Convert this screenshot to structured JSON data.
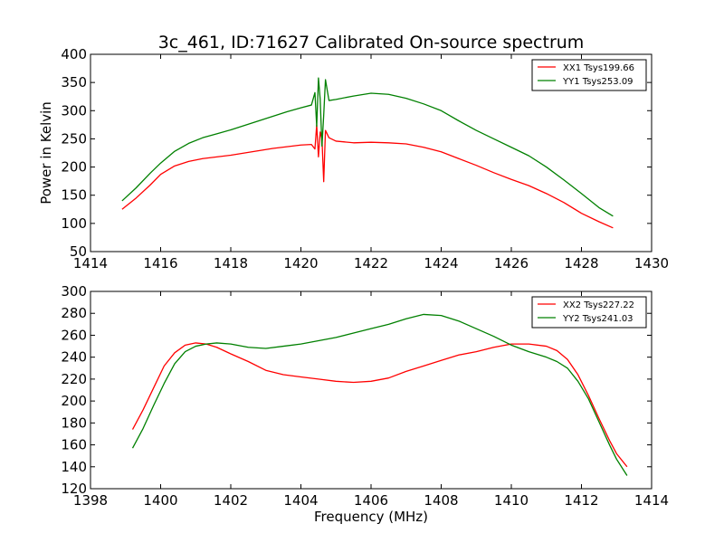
{
  "figure": {
    "title": "3c_461, ID:71627 Calibrated On-source spectrum"
  },
  "chart_data": [
    {
      "type": "line",
      "title": "3c_461, ID:71627 Calibrated On-source spectrum",
      "xlabel": "",
      "ylabel": "Power in Kelvin",
      "xlim": [
        1414,
        1430
      ],
      "ylim": [
        50,
        400
      ],
      "xticks": [
        "1414",
        "1416",
        "1418",
        "1420",
        "1422",
        "1424",
        "1426",
        "1428",
        "1430"
      ],
      "yticks": [
        "50",
        "100",
        "150",
        "200",
        "250",
        "300",
        "350",
        "400"
      ],
      "legend_position": "top-right",
      "grid": false,
      "series": [
        {
          "name": "XX1 Tsys199.66",
          "color": "#ff0000",
          "x": [
            1414.9,
            1415.3,
            1415.7,
            1416.0,
            1416.4,
            1416.8,
            1417.2,
            1417.6,
            1418.0,
            1418.4,
            1418.8,
            1419.2,
            1419.6,
            1420.0,
            1420.3,
            1420.4,
            1420.45,
            1420.5,
            1420.55,
            1420.6,
            1420.65,
            1420.7,
            1420.8,
            1421.0,
            1421.5,
            1422.0,
            1422.5,
            1423.0,
            1423.5,
            1424.0,
            1424.5,
            1425.0,
            1425.5,
            1426.0,
            1426.5,
            1427.0,
            1427.5,
            1428.0,
            1428.5,
            1428.9
          ],
          "y": [
            125,
            145,
            168,
            187,
            202,
            210,
            215,
            218,
            221,
            225,
            229,
            233,
            236,
            239,
            240,
            232,
            275,
            218,
            262,
            250,
            174,
            265,
            252,
            246,
            243,
            244,
            243,
            241,
            235,
            227,
            215,
            203,
            190,
            178,
            167,
            153,
            137,
            118,
            103,
            92
          ]
        },
        {
          "name": "YY1 Tsys253.09",
          "color": "#008000",
          "x": [
            1414.9,
            1415.3,
            1415.7,
            1416.0,
            1416.4,
            1416.8,
            1417.2,
            1417.6,
            1418.0,
            1418.4,
            1418.8,
            1419.2,
            1419.6,
            1420.0,
            1420.3,
            1420.4,
            1420.45,
            1420.5,
            1420.55,
            1420.6,
            1420.65,
            1420.7,
            1420.8,
            1421.0,
            1421.5,
            1422.0,
            1422.5,
            1423.0,
            1423.5,
            1424.0,
            1424.5,
            1425.0,
            1425.5,
            1426.0,
            1426.5,
            1427.0,
            1427.5,
            1428.0,
            1428.5,
            1428.9
          ],
          "y": [
            140,
            163,
            189,
            207,
            228,
            242,
            252,
            259,
            266,
            274,
            282,
            290,
            298,
            305,
            310,
            332,
            272,
            358,
            320,
            237,
            292,
            355,
            318,
            320,
            326,
            331,
            329,
            322,
            312,
            300,
            282,
            265,
            250,
            235,
            220,
            200,
            177,
            153,
            128,
            113
          ]
        }
      ]
    },
    {
      "type": "line",
      "title": "",
      "xlabel": "Frequency (MHz)",
      "ylabel": "",
      "xlim": [
        1398,
        1414
      ],
      "ylim": [
        120,
        300
      ],
      "xticks": [
        "1398",
        "1400",
        "1402",
        "1404",
        "1406",
        "1408",
        "1410",
        "1412",
        "1414"
      ],
      "yticks": [
        "120",
        "140",
        "160",
        "180",
        "200",
        "220",
        "240",
        "260",
        "280",
        "300"
      ],
      "legend_position": "top-right",
      "grid": false,
      "series": [
        {
          "name": "XX2 Tsys227.22",
          "color": "#ff0000",
          "x": [
            1399.2,
            1399.5,
            1399.8,
            1400.1,
            1400.4,
            1400.7,
            1401.0,
            1401.3,
            1401.6,
            1402.0,
            1402.5,
            1403.0,
            1403.5,
            1404.0,
            1404.5,
            1405.0,
            1405.5,
            1406.0,
            1406.5,
            1407.0,
            1407.5,
            1408.0,
            1408.5,
            1409.0,
            1409.5,
            1410.0,
            1410.5,
            1411.0,
            1411.3,
            1411.6,
            1411.9,
            1412.2,
            1412.5,
            1412.8,
            1413.0,
            1413.3
          ],
          "y": [
            174,
            192,
            212,
            232,
            244,
            251,
            253,
            252,
            249,
            243,
            236,
            228,
            224,
            222,
            220,
            218,
            217,
            218,
            221,
            227,
            232,
            237,
            242,
            245,
            249,
            252,
            252,
            250,
            246,
            238,
            224,
            205,
            184,
            164,
            152,
            140
          ]
        },
        {
          "name": "YY2 Tsys241.03",
          "color": "#008000",
          "x": [
            1399.2,
            1399.5,
            1399.8,
            1400.1,
            1400.4,
            1400.7,
            1401.0,
            1401.3,
            1401.6,
            1402.0,
            1402.5,
            1403.0,
            1403.5,
            1404.0,
            1404.5,
            1405.0,
            1405.5,
            1406.0,
            1406.5,
            1407.0,
            1407.5,
            1408.0,
            1408.5,
            1409.0,
            1409.5,
            1410.0,
            1410.5,
            1411.0,
            1411.3,
            1411.6,
            1411.9,
            1412.2,
            1412.5,
            1412.8,
            1413.0,
            1413.3
          ],
          "y": [
            157,
            175,
            196,
            216,
            234,
            245,
            250,
            252,
            253,
            252,
            249,
            248,
            250,
            252,
            255,
            258,
            262,
            266,
            270,
            275,
            279,
            278,
            273,
            266,
            259,
            251,
            245,
            240,
            236,
            230,
            218,
            202,
            181,
            160,
            147,
            132
          ]
        }
      ]
    }
  ]
}
